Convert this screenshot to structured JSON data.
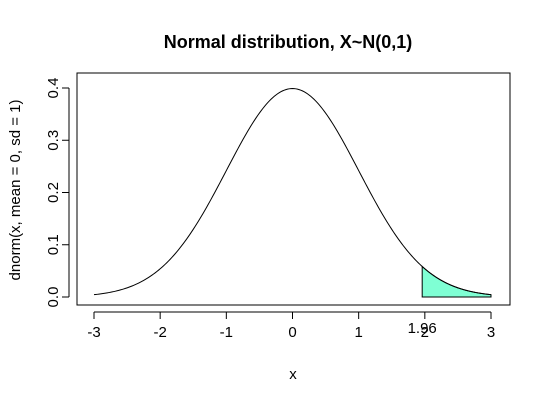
{
  "chart_data": {
    "type": "line",
    "title": "Normal distribution, X~N(0,1)",
    "xlabel": "x",
    "ylabel": "dnorm(x, mean = 0, sd = 1)",
    "xlim": [
      -3,
      3
    ],
    "ylim": [
      0,
      0.4
    ],
    "x_ticks": [
      -3,
      -2,
      -1,
      0,
      1,
      2,
      3
    ],
    "y_ticks": [
      0.0,
      0.1,
      0.2,
      0.3,
      0.4
    ],
    "x_tick_labels": [
      "-3",
      "-2",
      "-1",
      "0",
      "1",
      "2",
      "3"
    ],
    "y_tick_labels": [
      "0.0",
      "0.1",
      "0.2",
      "0.3",
      "0.4"
    ],
    "grid": false,
    "series": [
      {
        "x": [
          -3.0,
          -2.5,
          -2.0,
          -1.5,
          -1.0,
          -0.5,
          0.0,
          0.5,
          1.0,
          1.5,
          2.0,
          2.5,
          3.0
        ],
        "y": [
          0.0044,
          0.0175,
          0.054,
          0.1295,
          0.242,
          0.3521,
          0.3989,
          0.3521,
          0.242,
          0.1295,
          0.054,
          0.0175,
          0.0044
        ]
      }
    ],
    "shaded_region": {
      "x_from": 1.96,
      "x_to": 3,
      "fill": "#7FFFD4"
    },
    "annotation": {
      "x": 1.96,
      "label": "1.96"
    }
  }
}
